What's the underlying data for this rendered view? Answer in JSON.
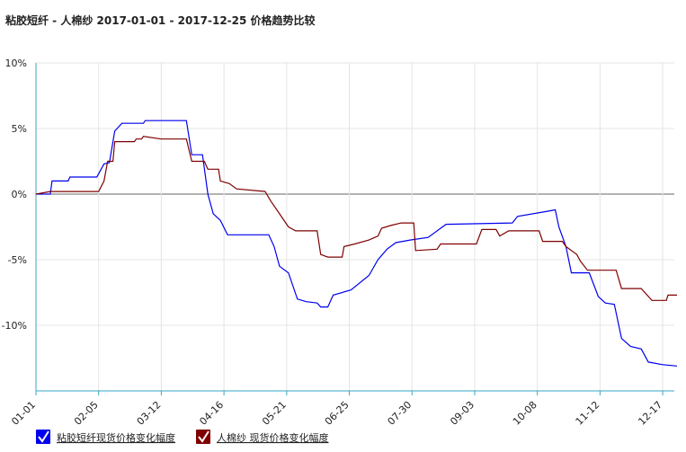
{
  "chart_data": {
    "type": "line",
    "title": "粘胶短纤 - 人棉纱 2017-01-01 - 2017-12-25 价格趋势比较",
    "xlim": [
      "01-01",
      "12-25"
    ],
    "xticks": [
      "01-01",
      "02-05",
      "03-12",
      "04-16",
      "05-21",
      "06-25",
      "07-30",
      "09-03",
      "10-08",
      "11-12",
      "12-17"
    ],
    "ylim": [
      -15,
      10
    ],
    "yticks": [
      {
        "value": -10,
        "label": "-10%"
      },
      {
        "value": -5,
        "label": "-5%"
      },
      {
        "value": 0,
        "label": "0%"
      },
      {
        "value": 5,
        "label": "5%"
      },
      {
        "value": 10,
        "label": "10%"
      }
    ],
    "grid": true,
    "legend": "bottom",
    "series": [
      {
        "name": "粘胶短纤现货价格变化幅度",
        "color": "#0000ee",
        "x": [
          "01-01",
          "01-09",
          "01-10",
          "01-19",
          "01-20",
          "02-04",
          "02-08",
          "02-11",
          "02-14",
          "02-18",
          "03-02",
          "03-03",
          "03-26",
          "03-29",
          "04-04",
          "04-07",
          "04-10",
          "04-14",
          "04-18",
          "05-11",
          "05-14",
          "05-17",
          "05-22",
          "05-27",
          "06-01",
          "06-07",
          "06-09",
          "06-13",
          "06-16",
          "06-26",
          "07-06",
          "07-11",
          "07-16",
          "07-21",
          "07-29",
          "08-08",
          "08-15",
          "08-18",
          "09-24",
          "09-27",
          "10-14",
          "10-18",
          "10-20",
          "10-24",
          "10-27",
          "11-06",
          "11-11",
          "11-15",
          "11-20",
          "11-24",
          "11-29",
          "12-05",
          "12-09",
          "12-17",
          "12-25"
        ],
        "values": [
          0,
          0,
          1.0,
          1.0,
          1.3,
          1.3,
          2.3,
          2.4,
          4.8,
          5.4,
          5.4,
          5.6,
          5.6,
          3.0,
          3.0,
          0,
          -1.5,
          -2.0,
          -3.1,
          -3.1,
          -4.0,
          -5.5,
          -6.0,
          -8.0,
          -8.2,
          -8.3,
          -8.6,
          -8.6,
          -7.7,
          -7.3,
          -6.2,
          -5.0,
          -4.2,
          -3.7,
          -3.5,
          -3.3,
          -2.6,
          -2.3,
          -2.2,
          -1.7,
          -1.3,
          -1.2,
          -2.5,
          -4.0,
          -6.0,
          -6.0,
          -7.8,
          -8.3,
          -8.4,
          -11.0,
          -11.6,
          -11.8,
          -12.8,
          -13.0,
          -13.1
        ]
      },
      {
        "name": "人棉纱 现货价格变化幅度",
        "color": "#7f0000",
        "x": [
          "01-01",
          "01-09",
          "02-05",
          "02-08",
          "02-10",
          "02-13",
          "02-14",
          "02-25",
          "02-26",
          "03-01",
          "03-02",
          "03-12",
          "03-26",
          "03-29",
          "04-05",
          "04-07",
          "04-13",
          "04-14",
          "04-19",
          "04-23",
          "05-09",
          "05-12",
          "05-17",
          "05-22",
          "05-26",
          "06-07",
          "06-09",
          "06-13",
          "06-21",
          "06-22",
          "06-28",
          "07-06",
          "07-11",
          "07-13",
          "07-18",
          "07-24",
          "07-31",
          "08-01",
          "08-13",
          "08-15",
          "09-04",
          "09-07",
          "09-15",
          "09-17",
          "09-22",
          "10-09",
          "10-11",
          "10-22",
          "10-24",
          "10-30",
          "11-01",
          "11-05",
          "11-21",
          "11-24",
          "12-05",
          "12-11",
          "12-19",
          "12-20",
          "12-25"
        ],
        "values": [
          0,
          0.2,
          0.2,
          1.0,
          2.5,
          2.5,
          4.0,
          4.0,
          4.2,
          4.2,
          4.4,
          4.2,
          4.2,
          2.5,
          2.5,
          1.9,
          1.9,
          1.0,
          0.8,
          0.4,
          0.2,
          -0.5,
          -1.5,
          -2.5,
          -2.8,
          -2.8,
          -4.6,
          -4.8,
          -4.8,
          -4.0,
          -3.8,
          -3.5,
          -3.2,
          -2.6,
          -2.4,
          -2.2,
          -2.2,
          -4.3,
          -4.2,
          -3.8,
          -3.8,
          -2.7,
          -2.7,
          -3.2,
          -2.8,
          -2.8,
          -3.6,
          -3.6,
          -4.0,
          -4.6,
          -5.1,
          -5.8,
          -5.8,
          -7.2,
          -7.2,
          -8.1,
          -8.1,
          -7.7,
          -7.7
        ]
      }
    ]
  }
}
